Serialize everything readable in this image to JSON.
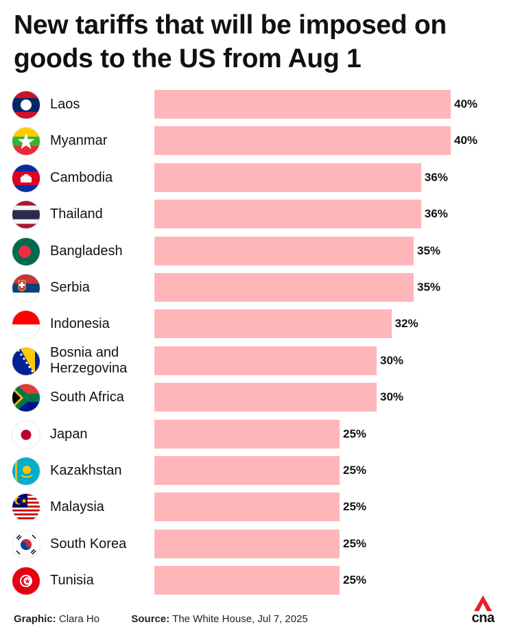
{
  "title": "New tariffs that will be imposed on goods to the US from Aug 1",
  "chart_data": {
    "type": "bar",
    "orientation": "horizontal",
    "title": "New tariffs that will be imposed on goods to the US from Aug 1",
    "categories": [
      "Laos",
      "Myanmar",
      "Cambodia",
      "Thailand",
      "Bangladesh",
      "Serbia",
      "Indonesia",
      "Bosnia and Herzegovina",
      "South Africa",
      "Japan",
      "Kazakhstan",
      "Malaysia",
      "South Korea",
      "Tunisia"
    ],
    "values": [
      40,
      40,
      36,
      36,
      35,
      35,
      32,
      30,
      30,
      25,
      25,
      25,
      25,
      25
    ],
    "value_labels": [
      "40%",
      "40%",
      "36%",
      "36%",
      "35%",
      "35%",
      "32%",
      "30%",
      "30%",
      "25%",
      "25%",
      "25%",
      "25%",
      "25%"
    ],
    "flags": [
      "laos-flag-icon",
      "myanmar-flag-icon",
      "cambodia-flag-icon",
      "thailand-flag-icon",
      "bangladesh-flag-icon",
      "serbia-flag-icon",
      "indonesia-flag-icon",
      "bosnia-flag-icon",
      "south-africa-flag-icon",
      "japan-flag-icon",
      "kazakhstan-flag-icon",
      "malaysia-flag-icon",
      "south-korea-flag-icon",
      "tunisia-flag-icon"
    ],
    "bar_color": "#ffb6bb",
    "xlim": [
      0,
      40
    ]
  },
  "footer": {
    "graphic_label": "Graphic:",
    "graphic_value": "Clara Ho",
    "source_label": "Source:",
    "source_value": "The White House, Jul 7, 2025"
  },
  "logo": {
    "text": "cna",
    "accent": "#e4202a"
  }
}
